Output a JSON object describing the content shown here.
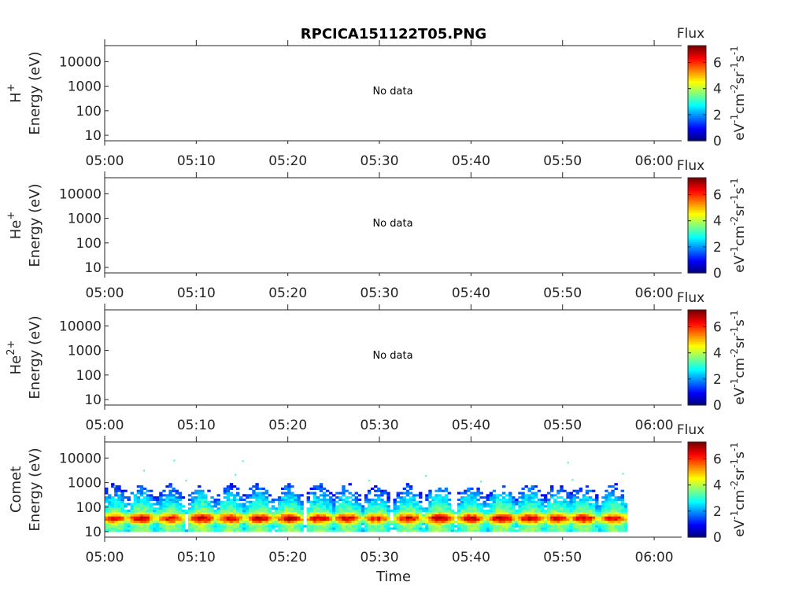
{
  "title": "RPCICA151122T05.PNG",
  "xlabel": "Time",
  "colorbar": {
    "label": "Flux",
    "unit": "eV^{-1}cm^{-2}sr^{-1}s^{-1}",
    "ticks": [
      "0",
      "2",
      "4",
      "6"
    ],
    "range": [
      0,
      7.3
    ]
  },
  "chart_data": [
    {
      "type": "heatmap",
      "species_label": "H^{+}",
      "ylabel": "Energy (eV)",
      "ytick_labels": [
        "10",
        "100",
        "1000",
        "10000"
      ],
      "yscale": "log",
      "ylim": [
        6,
        45000
      ],
      "xtick_labels": [
        "05:00",
        "05:10",
        "05:20",
        "05:30",
        "05:40",
        "05:50",
        "06:00"
      ],
      "xlim_minutes": [
        0,
        63
      ],
      "annotation": "No data",
      "cells": []
    },
    {
      "type": "heatmap",
      "species_label": "He^{+}",
      "ylabel": "Energy (eV)",
      "ytick_labels": [
        "10",
        "100",
        "1000",
        "10000"
      ],
      "yscale": "log",
      "ylim": [
        6,
        45000
      ],
      "xtick_labels": [
        "05:00",
        "05:10",
        "05:20",
        "05:30",
        "05:40",
        "05:50",
        "06:00"
      ],
      "xlim_minutes": [
        0,
        63
      ],
      "annotation": "No data",
      "cells": []
    },
    {
      "type": "heatmap",
      "species_label": "He^{2+}",
      "ylabel": "Energy (eV)",
      "ytick_labels": [
        "10",
        "100",
        "1000",
        "10000"
      ],
      "yscale": "log",
      "ylim": [
        6,
        45000
      ],
      "xtick_labels": [
        "05:00",
        "05:10",
        "05:20",
        "05:30",
        "05:40",
        "05:50",
        "06:00"
      ],
      "xlim_minutes": [
        0,
        63
      ],
      "annotation": "No data",
      "cells": []
    },
    {
      "type": "heatmap",
      "species_label": "Comet",
      "ylabel": "Energy (eV)",
      "ytick_labels": [
        "10",
        "100",
        "1000",
        "10000"
      ],
      "yscale": "log",
      "ylim": [
        6,
        45000
      ],
      "xtick_labels": [
        "05:00",
        "05:10",
        "05:20",
        "05:30",
        "05:40",
        "05:50",
        "06:00"
      ],
      "xlim_minutes": [
        0,
        63
      ],
      "annotation": "",
      "bursts": [
        {
          "t": 0.9,
          "peak": 6.5
        },
        {
          "t": 3.8,
          "peak": 6.8
        },
        {
          "t": 7.0,
          "peak": 6.6
        },
        {
          "t": 10.4,
          "peak": 7.0
        },
        {
          "t": 13.6,
          "peak": 6.7
        },
        {
          "t": 16.7,
          "peak": 6.9
        },
        {
          "t": 20.0,
          "peak": 7.0
        },
        {
          "t": 23.3,
          "peak": 6.8
        },
        {
          "t": 26.3,
          "peak": 6.7
        },
        {
          "t": 29.5,
          "peak": 6.3
        },
        {
          "t": 33.0,
          "peak": 6.8
        },
        {
          "t": 36.4,
          "peak": 7.1
        },
        {
          "t": 39.8,
          "peak": 6.9
        },
        {
          "t": 43.2,
          "peak": 7.1
        },
        {
          "t": 46.3,
          "peak": 6.9
        },
        {
          "t": 49.3,
          "peak": 6.7
        },
        {
          "t": 52.1,
          "peak": 6.9
        },
        {
          "t": 55.4,
          "peak": 6.6
        }
      ],
      "data_end_minutes": 57,
      "sporadic_high_energy": [
        {
          "t": 4.2,
          "e": 3100
        },
        {
          "t": 7.5,
          "e": 8000
        },
        {
          "t": 15.0,
          "e": 7500
        },
        {
          "t": 8.8,
          "e": 1200
        },
        {
          "t": 14.2,
          "e": 2100
        },
        {
          "t": 28.8,
          "e": 1200
        },
        {
          "t": 35.0,
          "e": 1900
        },
        {
          "t": 50.5,
          "e": 6500
        },
        {
          "t": 51.0,
          "e": 1300
        },
        {
          "t": 56.5,
          "e": 2300
        },
        {
          "t": 41.0,
          "e": 1100
        },
        {
          "t": 1.0,
          "e": 700
        }
      ]
    }
  ]
}
